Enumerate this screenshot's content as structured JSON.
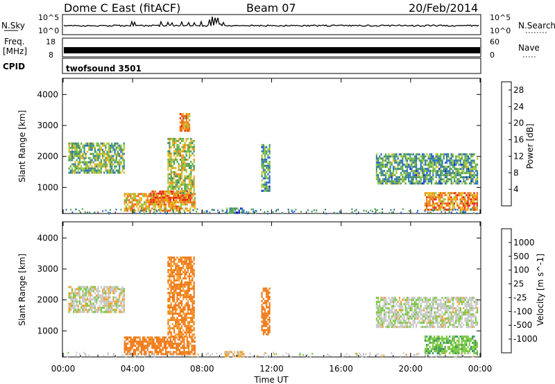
{
  "header": {
    "radar_title": "Dome C East (fitACF)",
    "beam": "Beam 07",
    "date": "20/Feb/2014"
  },
  "aux_panels": {
    "nsky_label": "N.Sky",
    "nsky_tick_top": "10^5",
    "nsky_tick_bottom": "10^0",
    "nsearch_label": "N.Search",
    "nsearch_tick_top": "10^5",
    "nsearch_tick_bottom": "10^0",
    "freq_label_line1": "Freq.",
    "freq_label_line2": "[MHz]",
    "freq_tick_top": "18",
    "freq_tick_bottom": "8",
    "nave_label": "Nave",
    "nave_tick_top": "60",
    "nave_tick_bottom": "0",
    "cpid_label": "CPID",
    "cpid_value": "twofsound 3501"
  },
  "colors": {
    "power_scale": [
      "#1428d2",
      "#2a6ec8",
      "#3f8f66",
      "#5aa84e",
      "#9cc83a",
      "#f0b41e",
      "#f08c14",
      "#f06414",
      "#e62814"
    ],
    "velocity_scale": [
      "#1428c8",
      "#2a64b4",
      "#3c965a",
      "#78c83c",
      "#c8c8c8",
      "#f0a028",
      "#f07814",
      "#f05014",
      "#e61414"
    ]
  },
  "chart_data": [
    {
      "type": "heatmap",
      "name": "power",
      "xlabel": "",
      "ylabel": "Slant Range [km]",
      "yticks": [
        1000,
        2000,
        3000,
        4000
      ],
      "ylim": [
        180,
        4500
      ],
      "xlim_hours": [
        0,
        24
      ],
      "colorbar_label": "Power [dB]",
      "colorbar_ticks": [
        "4",
        "8",
        "12",
        "16",
        "20",
        "24",
        "28"
      ],
      "colorbar_range": [
        0,
        30
      ],
      "regions": [
        {
          "t": [
            0.3,
            3.5
          ],
          "r": [
            1500,
            2450
          ],
          "value": 12
        },
        {
          "t": [
            3.5,
            7.6
          ],
          "r": [
            260,
            820
          ],
          "value": 20
        },
        {
          "t": [
            5.0,
            7.3
          ],
          "r": [
            500,
            900
          ],
          "value": 26
        },
        {
          "t": [
            6.0,
            7.5
          ],
          "r": [
            800,
            2600
          ],
          "value": 14
        },
        {
          "t": [
            6.7,
            7.3
          ],
          "r": [
            2800,
            3400
          ],
          "value": 22
        },
        {
          "t": [
            9.3,
            10.4
          ],
          "r": [
            180,
            350
          ],
          "value": 8
        },
        {
          "t": [
            11.4,
            11.9
          ],
          "r": [
            900,
            2400
          ],
          "value": 10
        },
        {
          "t": [
            18.0,
            23.8
          ],
          "r": [
            1100,
            2100
          ],
          "value": 10
        },
        {
          "t": [
            20.8,
            23.8
          ],
          "r": [
            300,
            850
          ],
          "value": 22
        }
      ]
    },
    {
      "type": "heatmap",
      "name": "velocity",
      "xlabel": "Time UT",
      "ylabel": "Slant Range [km]",
      "xticks": [
        "00:00",
        "04:00",
        "08:00",
        "12:00",
        "16:00",
        "20:00",
        "00:00"
      ],
      "yticks": [
        1000,
        2000,
        3000,
        4000
      ],
      "ylim": [
        180,
        4500
      ],
      "xlim_hours": [
        0,
        24
      ],
      "colorbar_label": "Velocity [m s^-1]",
      "colorbar_ticks": [
        "1000",
        "500",
        "100",
        "25",
        "-25",
        "-100",
        "-500",
        "-1000"
      ],
      "regions": [
        {
          "t": [
            0.3,
            3.5
          ],
          "r": [
            1600,
            2450
          ],
          "value": 0
        },
        {
          "t": [
            3.5,
            7.6
          ],
          "r": [
            260,
            820
          ],
          "value": -200
        },
        {
          "t": [
            6.0,
            7.5
          ],
          "r": [
            800,
            3400
          ],
          "value": -150
        },
        {
          "t": [
            9.3,
            10.4
          ],
          "r": [
            180,
            350
          ],
          "value": -50
        },
        {
          "t": [
            11.4,
            11.9
          ],
          "r": [
            900,
            2400
          ],
          "value": -250
        },
        {
          "t": [
            18.0,
            23.8
          ],
          "r": [
            1100,
            2100
          ],
          "value": 10
        },
        {
          "t": [
            20.8,
            23.8
          ],
          "r": [
            300,
            850
          ],
          "value": 80
        }
      ]
    }
  ]
}
